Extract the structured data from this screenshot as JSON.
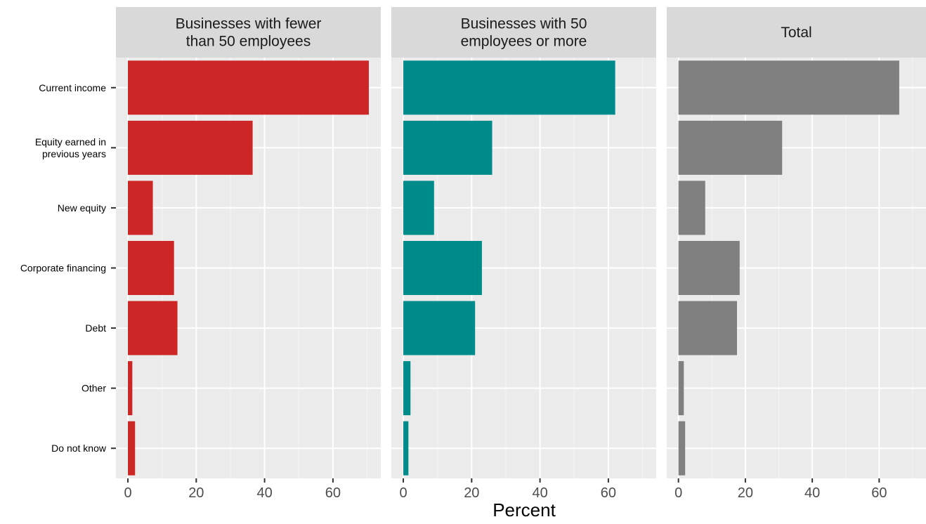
{
  "chart_data": {
    "type": "bar",
    "orientation": "horizontal",
    "facets": [
      {
        "title_lines": [
          "Businesses with fewer",
          "than 50 employees"
        ],
        "color": "#cd2626",
        "values": [
          70.5,
          36.5,
          7.3,
          13.5,
          14.5,
          1.3,
          2.1
        ]
      },
      {
        "title_lines": [
          "Businesses with 50",
          "employees or more"
        ],
        "color": "#008b8b",
        "values": [
          62.0,
          26.0,
          9.0,
          23.0,
          21.0,
          2.1,
          1.5
        ]
      },
      {
        "title_lines": [
          "Total"
        ],
        "color": "#808080",
        "values": [
          66.0,
          31.0,
          8.0,
          18.3,
          17.5,
          1.6,
          2.0
        ]
      }
    ],
    "categories": [
      [
        "Current income"
      ],
      [
        "Equity earned in",
        "previous years"
      ],
      [
        "New equity"
      ],
      [
        "Corporate financing"
      ],
      [
        "Debt"
      ],
      [
        "Other"
      ],
      [
        "Do not know"
      ]
    ],
    "xlabel": "Percent",
    "xlim": [
      -3.5,
      74
    ],
    "xticks": [
      0,
      20,
      40,
      60
    ],
    "xticks_minor": [
      10,
      30,
      50,
      70
    ],
    "grid": true,
    "legend": "none"
  }
}
